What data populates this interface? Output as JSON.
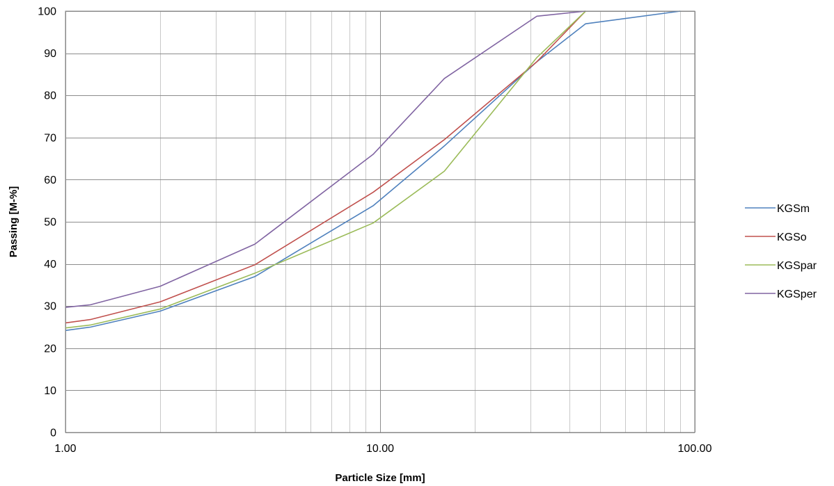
{
  "chart_data": {
    "type": "line",
    "xscale": "log",
    "xlim": [
      1,
      100
    ],
    "ylim": [
      0,
      100
    ],
    "xticks": [
      1,
      10,
      100
    ],
    "xtick_labels": [
      "1.00",
      "10.00",
      "100.00"
    ],
    "yticks": [
      0,
      10,
      20,
      30,
      40,
      50,
      60,
      70,
      80,
      90,
      100
    ],
    "ytick_labels": [
      "0",
      "10",
      "20",
      "30",
      "40",
      "50",
      "60",
      "70",
      "80",
      "90",
      "100"
    ],
    "xlabel": "Particle Size [mm]",
    "ylabel": "Passing [M-%]",
    "grid": true,
    "legend_position": "right",
    "series": [
      {
        "name": "KGSm",
        "color": "#4f81bd",
        "points": [
          [
            1,
            24.2
          ],
          [
            1.2,
            25.0
          ],
          [
            2,
            28.8
          ],
          [
            4,
            37.0
          ],
          [
            9.5,
            53.8
          ],
          [
            16,
            68.0
          ],
          [
            31.5,
            88.0
          ],
          [
            45,
            97.0
          ],
          [
            90,
            100
          ]
        ]
      },
      {
        "name": "KGSo",
        "color": "#c0504d",
        "points": [
          [
            1,
            26.0
          ],
          [
            1.2,
            26.8
          ],
          [
            2,
            31.0
          ],
          [
            4,
            39.8
          ],
          [
            9.5,
            57.0
          ],
          [
            16,
            69.5
          ],
          [
            31.5,
            88.0
          ],
          [
            45,
            100
          ]
        ]
      },
      {
        "name": "KGSpar",
        "color": "#9bbb59",
        "points": [
          [
            1,
            24.8
          ],
          [
            1.2,
            25.5
          ],
          [
            2,
            29.3
          ],
          [
            4,
            37.8
          ],
          [
            9.5,
            49.7
          ],
          [
            16,
            62.0
          ],
          [
            31.5,
            89.0
          ],
          [
            45,
            100
          ]
        ]
      },
      {
        "name": "KGSper",
        "color": "#8064a2",
        "points": [
          [
            1,
            29.7
          ],
          [
            1.2,
            30.3
          ],
          [
            2,
            34.7
          ],
          [
            4,
            44.7
          ],
          [
            9.5,
            66.0
          ],
          [
            16,
            84.0
          ],
          [
            31.5,
            98.8
          ],
          [
            45,
            100
          ]
        ]
      }
    ]
  }
}
